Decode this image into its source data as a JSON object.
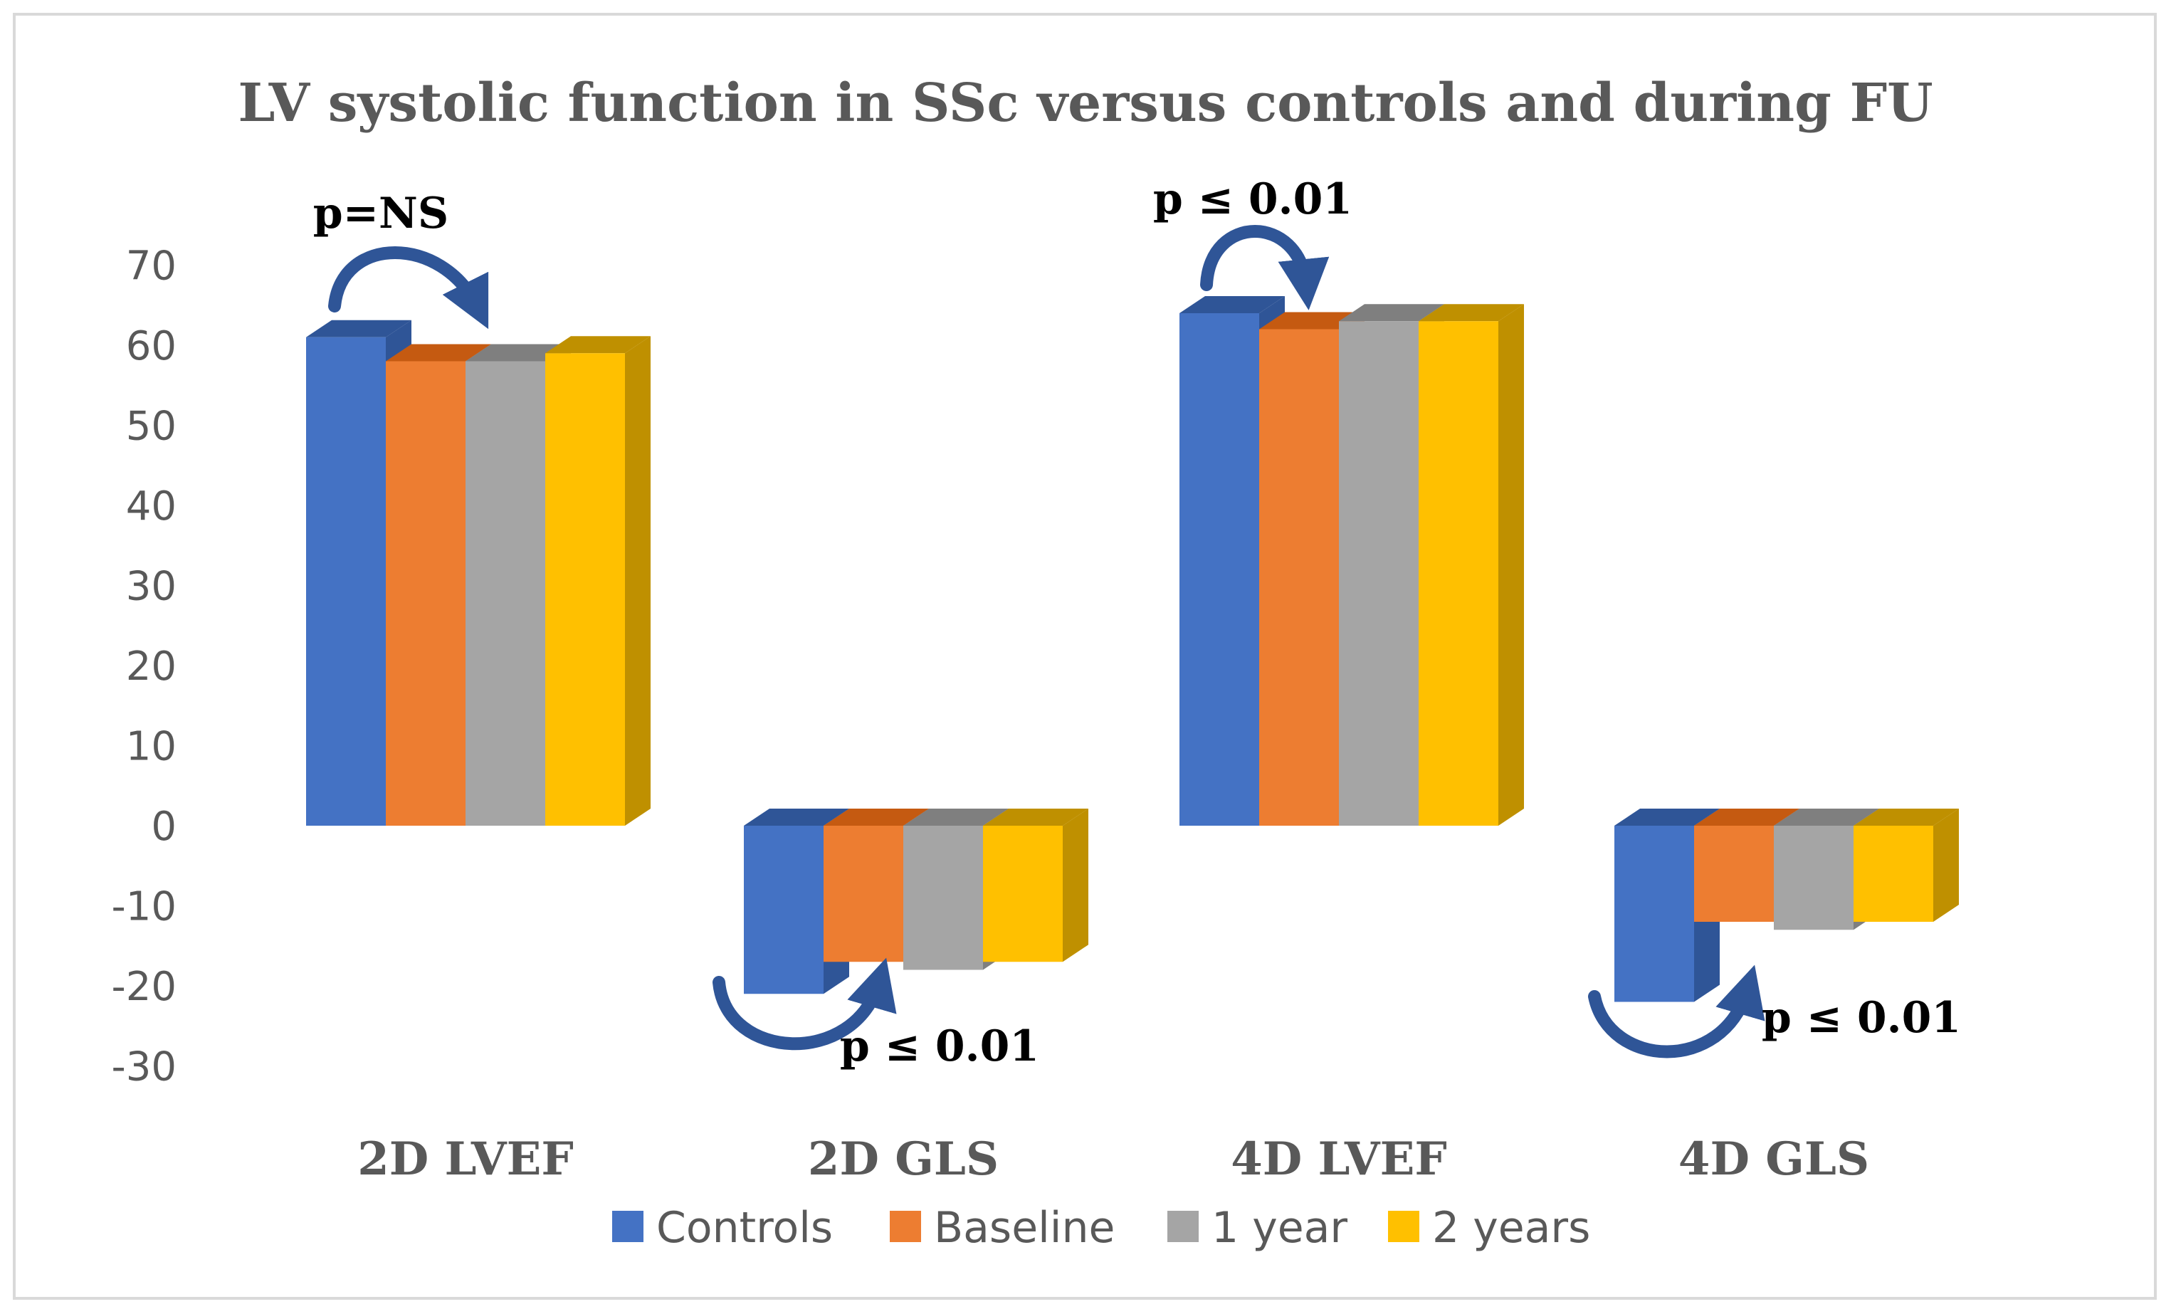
{
  "chart_data": {
    "type": "bar",
    "style": "3d-clustered-column",
    "title": "LV systolic function in SSc versus controls and during FU",
    "xlabel": "",
    "ylabel": "",
    "ylim": [
      -30,
      70
    ],
    "yticks": [
      70,
      60,
      50,
      40,
      30,
      20,
      10,
      0,
      -10,
      -20,
      -30
    ],
    "gridlines": false,
    "legend_position": "bottom",
    "categories": [
      "2D LVEF",
      "2D GLS",
      "4D LVEF",
      "4D GLS"
    ],
    "series": [
      {
        "name": "Controls",
        "color": "#4472c4",
        "side_color": "#2f5597",
        "values": [
          61,
          -21,
          64,
          -22
        ]
      },
      {
        "name": "Baseline",
        "color": "#ed7d31",
        "side_color": "#c55a11",
        "values": [
          58,
          -17,
          62,
          -12
        ]
      },
      {
        "name": "1 year",
        "color": "#a5a5a5",
        "side_color": "#7f7f7f",
        "values": [
          58,
          -18,
          63,
          -13
        ]
      },
      {
        "name": "2 years",
        "color": "#ffc000",
        "side_color": "#bf9000",
        "values": [
          59,
          -17,
          63,
          -12
        ]
      }
    ],
    "annotations": [
      {
        "text": "p=NS",
        "category": "2D LVEF",
        "arrow_color": "#2f5597"
      },
      {
        "text": "p ≤ 0.01",
        "category": "2D GLS",
        "arrow_color": "#2f5597"
      },
      {
        "text": "p ≤ 0.01",
        "category": "4D LVEF",
        "arrow_color": "#2f5597"
      },
      {
        "text": "p ≤ 0.01",
        "category": "4D GLS",
        "arrow_color": "#2f5597"
      }
    ]
  }
}
